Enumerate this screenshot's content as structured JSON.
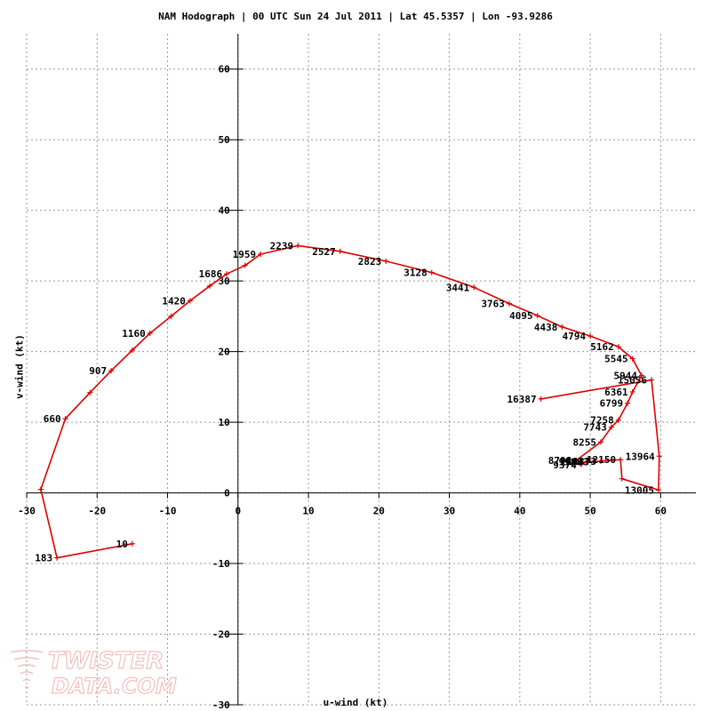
{
  "header": {
    "title": "NAM Hodograph | 00 UTC Sun 24 Jul 2011 | Lat 45.5357 | Lon -93.9286"
  },
  "watermark": {
    "line1": "TWISTER",
    "line2": "DATA.COM"
  },
  "colors": {
    "trace": "#dd0000",
    "grid": "#999999",
    "axis": "#000000",
    "background": "#ffffff"
  },
  "chart_data": {
    "type": "line",
    "title": "NAM Hodograph | 00 UTC Sun 24 Jul 2011 | Lat 45.5357 | Lon -93.9286",
    "xlabel": "u-wind (kt)",
    "ylabel": "v-wind (kt)",
    "xlim": [
      -30,
      65
    ],
    "ylim": [
      -30,
      65
    ],
    "xticks": [
      -30,
      -20,
      -10,
      0,
      10,
      20,
      30,
      40,
      50,
      60
    ],
    "yticks": [
      -30,
      -20,
      -10,
      0,
      10,
      20,
      30,
      40,
      50,
      60
    ],
    "grid": true,
    "series": [
      {
        "points": [
          {
            "u": -15.0,
            "v": -7.2,
            "label": "10"
          },
          {
            "u": -25.7,
            "v": -9.2,
            "label": "183"
          },
          {
            "u": -28.0,
            "v": 0.5,
            "label": ""
          },
          {
            "u": -24.5,
            "v": 10.5,
            "label": "660"
          },
          {
            "u": -21.0,
            "v": 14.2,
            "label": ""
          },
          {
            "u": -18.0,
            "v": 17.3,
            "label": "907"
          },
          {
            "u": -15.0,
            "v": 20.2,
            "label": ""
          },
          {
            "u": -12.5,
            "v": 22.6,
            "label": "1160"
          },
          {
            "u": -9.5,
            "v": 25.0,
            "label": ""
          },
          {
            "u": -6.8,
            "v": 27.2,
            "label": "1420"
          },
          {
            "u": -4.0,
            "v": 29.3,
            "label": ""
          },
          {
            "u": -1.6,
            "v": 31.0,
            "label": "1686"
          },
          {
            "u": 1.0,
            "v": 32.2,
            "label": ""
          },
          {
            "u": 3.2,
            "v": 33.8,
            "label": "1959"
          },
          {
            "u": 8.5,
            "v": 35.0,
            "label": "2239"
          },
          {
            "u": 14.5,
            "v": 34.2,
            "label": "2527"
          },
          {
            "u": 21.0,
            "v": 32.8,
            "label": "2823"
          },
          {
            "u": 27.5,
            "v": 31.2,
            "label": "3128"
          },
          {
            "u": 33.5,
            "v": 29.1,
            "label": "3441"
          },
          {
            "u": 38.5,
            "v": 26.8,
            "label": "3763"
          },
          {
            "u": 42.5,
            "v": 25.1,
            "label": "4095"
          },
          {
            "u": 46.0,
            "v": 23.5,
            "label": "4438"
          },
          {
            "u": 50.0,
            "v": 22.2,
            "label": "4794"
          },
          {
            "u": 54.0,
            "v": 20.7,
            "label": "5162"
          },
          {
            "u": 56.0,
            "v": 19.0,
            "label": "5545"
          },
          {
            "u": 57.3,
            "v": 16.6,
            "label": "5944"
          },
          {
            "u": 56.0,
            "v": 14.3,
            "label": "6361"
          },
          {
            "u": 55.3,
            "v": 12.7,
            "label": "6799"
          },
          {
            "u": 54.0,
            "v": 10.3,
            "label": "7258"
          },
          {
            "u": 53.0,
            "v": 9.3,
            "label": "7743"
          },
          {
            "u": 51.5,
            "v": 7.2,
            "label": "8255"
          },
          {
            "u": 48.0,
            "v": 4.6,
            "label": "8798"
          },
          {
            "u": 48.7,
            "v": 4.0,
            "label": "9374"
          },
          {
            "u": 49.5,
            "v": 4.4,
            "label": "9988"
          },
          {
            "u": 50.5,
            "v": 4.4,
            "label": "10643"
          },
          {
            "u": 51.5,
            "v": 4.5,
            "label": "11373"
          },
          {
            "u": 54.3,
            "v": 4.7,
            "label": "12150"
          },
          {
            "u": 54.5,
            "v": 2.0,
            "label": ""
          },
          {
            "u": 59.7,
            "v": 0.4,
            "label": "13005"
          },
          {
            "u": 59.8,
            "v": 5.2,
            "label": "13964"
          },
          {
            "u": 58.7,
            "v": 16.0,
            "label": "15056"
          },
          {
            "u": 43.0,
            "v": 13.3,
            "label": "16387"
          }
        ]
      }
    ]
  }
}
